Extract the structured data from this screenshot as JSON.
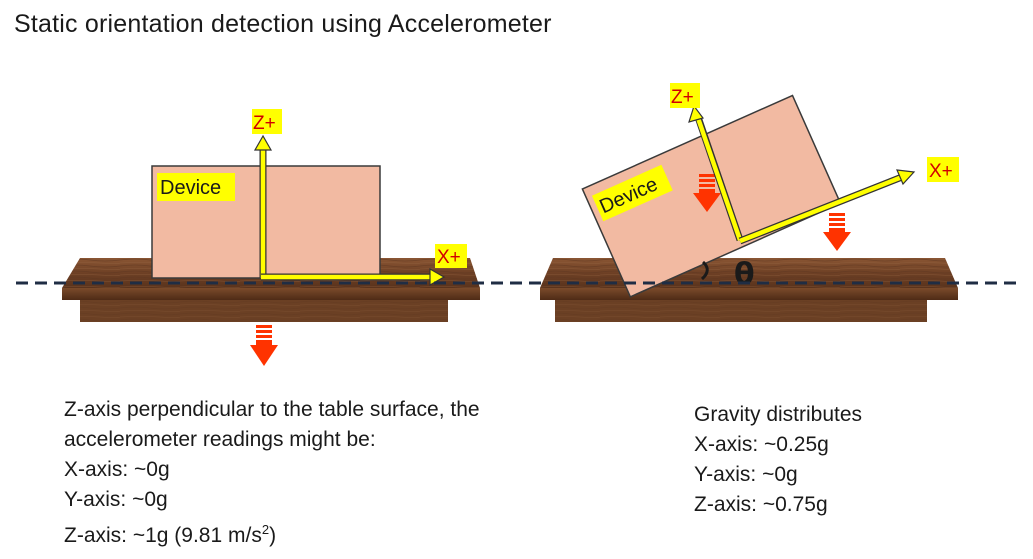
{
  "title": "Static orientation detection using Accelerometer",
  "left_scene": {
    "device_label": "Device",
    "z_axis_label": "Z+",
    "x_axis_label": "X+",
    "description": {
      "line1": "Z-axis perpendicular to the table surface, the",
      "line2": "accelerometer readings might be:",
      "x_reading": "X-axis: ~0g",
      "y_reading": "Y-axis: ~0g",
      "z_reading_prefix": "Z-axis: ~1g (9.81 m/s",
      "z_reading_sup": "2",
      "z_reading_suffix": ")"
    }
  },
  "right_scene": {
    "device_label": "Device",
    "z_axis_label": "Z+",
    "x_axis_label": "X+",
    "angle_symbol": "θ",
    "description": {
      "line1": "Gravity distributes",
      "x_reading": "X-axis: ~0.25g",
      "y_reading": "Y-axis: ~0g",
      "z_reading": "Z-axis: ~0.75g"
    }
  },
  "colors": {
    "device_fill": "#f2baa2",
    "axis_yellow": "#ffff00",
    "label_red": "#d10000",
    "gravity_red": "#ff3300",
    "table_wood": "#7a4a2a",
    "dashed_line": "#1f2d44"
  }
}
